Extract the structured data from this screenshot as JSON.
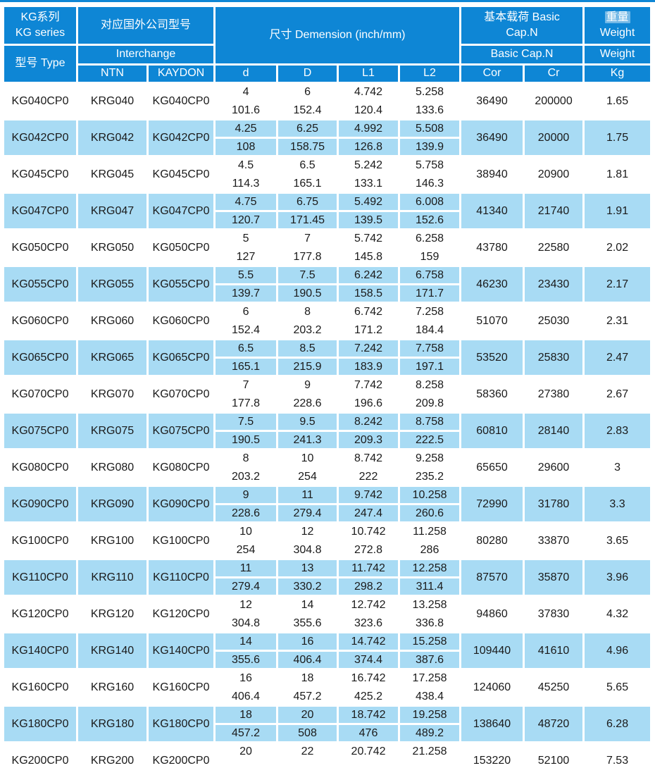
{
  "colors": {
    "header_blue": "#0e86d5",
    "row_alt_blue": "#a8dbf4",
    "row_white": "#ffffff",
    "text": "#1a1a1a",
    "header_text": "#ffffff"
  },
  "header": {
    "series_line1": "KG系列",
    "series_line2": "KG series",
    "type": "型号 Type",
    "interchange_group": "对应国外公司型号",
    "interchange_sub": "Interchange",
    "ntn": "NTN",
    "kaydon": "KAYDON",
    "dimension": "尺寸 Demension (inch/mm)",
    "basic_group_line1": "基本载荷 Basic",
    "basic_group_line2": "Cap.N",
    "basic_sub": "Basic Cap.N",
    "cor": "Cor",
    "cr": "Cr",
    "weight_group_line1": "重量",
    "weight_group_line2": "Weight",
    "weight_sub": "Weight",
    "kg": "Kg"
  },
  "rows": [
    {
      "type": "KG040CP0",
      "ntn": "KRG040",
      "kaydon": "KG040CP0",
      "d": [
        "4",
        "101.6"
      ],
      "D": [
        "6",
        "152.4"
      ],
      "L1": [
        "4.742",
        "120.4"
      ],
      "L2": [
        "5.258",
        "133.6"
      ],
      "cor": "36490",
      "cr": "200000",
      "kg": "1.65"
    },
    {
      "type": "KG042CP0",
      "ntn": "KRG042",
      "kaydon": "KG042CP0",
      "d": [
        "4.25",
        "108"
      ],
      "D": [
        "6.25",
        "158.75"
      ],
      "L1": [
        "4.992",
        "126.8"
      ],
      "L2": [
        "5.508",
        "139.9"
      ],
      "cor": "36490",
      "cr": "20000",
      "kg": "1.75"
    },
    {
      "type": "KG045CP0",
      "ntn": "KRG045",
      "kaydon": "KG045CP0",
      "d": [
        "4.5",
        "114.3"
      ],
      "D": [
        "6.5",
        "165.1"
      ],
      "L1": [
        "5.242",
        "133.1"
      ],
      "L2": [
        "5.758",
        "146.3"
      ],
      "cor": "38940",
      "cr": "20900",
      "kg": "1.81"
    },
    {
      "type": "KG047CP0",
      "ntn": "KRG047",
      "kaydon": "KG047CP0",
      "d": [
        "4.75",
        "120.7"
      ],
      "D": [
        "6.75",
        "171.45"
      ],
      "L1": [
        "5.492",
        "139.5"
      ],
      "L2": [
        "6.008",
        "152.6"
      ],
      "cor": "41340",
      "cr": "21740",
      "kg": "1.91"
    },
    {
      "type": "KG050CP0",
      "ntn": "KRG050",
      "kaydon": "KG050CP0",
      "d": [
        "5",
        "127"
      ],
      "D": [
        "7",
        "177.8"
      ],
      "L1": [
        "5.742",
        "145.8"
      ],
      "L2": [
        "6.258",
        "159"
      ],
      "cor": "43780",
      "cr": "22580",
      "kg": "2.02"
    },
    {
      "type": "KG055CP0",
      "ntn": "KRG055",
      "kaydon": "KG055CP0",
      "d": [
        "5.5",
        "139.7"
      ],
      "D": [
        "7.5",
        "190.5"
      ],
      "L1": [
        "6.242",
        "158.5"
      ],
      "L2": [
        "6.758",
        "171.7"
      ],
      "cor": "46230",
      "cr": "23430",
      "kg": "2.17"
    },
    {
      "type": "KG060CP0",
      "ntn": "KRG060",
      "kaydon": "KG060CP0",
      "d": [
        "6",
        "152.4"
      ],
      "D": [
        "8",
        "203.2"
      ],
      "L1": [
        "6.742",
        "171.2"
      ],
      "L2": [
        "7.258",
        "184.4"
      ],
      "cor": "51070",
      "cr": "25030",
      "kg": "2.31"
    },
    {
      "type": "KG065CP0",
      "ntn": "KRG065",
      "kaydon": "KG065CP0",
      "d": [
        "6.5",
        "165.1"
      ],
      "D": [
        "8.5",
        "215.9"
      ],
      "L1": [
        "7.242",
        "183.9"
      ],
      "L2": [
        "7.758",
        "197.1"
      ],
      "cor": "53520",
      "cr": "25830",
      "kg": "2.47"
    },
    {
      "type": "KG070CP0",
      "ntn": "KRG070",
      "kaydon": "KG070CP0",
      "d": [
        "7",
        "177.8"
      ],
      "D": [
        "9",
        "228.6"
      ],
      "L1": [
        "7.742",
        "196.6"
      ],
      "L2": [
        "8.258",
        "209.8"
      ],
      "cor": "58360",
      "cr": "27380",
      "kg": "2.67"
    },
    {
      "type": "KG075CP0",
      "ntn": "KRG075",
      "kaydon": "KG075CP0",
      "d": [
        "7.5",
        "190.5"
      ],
      "D": [
        "9.5",
        "241.3"
      ],
      "L1": [
        "8.242",
        "209.3"
      ],
      "L2": [
        "8.758",
        "222.5"
      ],
      "cor": "60810",
      "cr": "28140",
      "kg": "2.83"
    },
    {
      "type": "KG080CP0",
      "ntn": "KRG080",
      "kaydon": "KG080CP0",
      "d": [
        "8",
        "203.2"
      ],
      "D": [
        "10",
        "254"
      ],
      "L1": [
        "8.742",
        "222"
      ],
      "L2": [
        "9.258",
        "235.2"
      ],
      "cor": "65650",
      "cr": "29600",
      "kg": "3"
    },
    {
      "type": "KG090CP0",
      "ntn": "KRG090",
      "kaydon": "KG090CP0",
      "d": [
        "9",
        "228.6"
      ],
      "D": [
        "11",
        "279.4"
      ],
      "L1": [
        "9.742",
        "247.4"
      ],
      "L2": [
        "10.258",
        "260.6"
      ],
      "cor": "72990",
      "cr": "31780",
      "kg": "3.3"
    },
    {
      "type": "KG100CP0",
      "ntn": "KRG100",
      "kaydon": "KG100CP0",
      "d": [
        "10",
        "254"
      ],
      "D": [
        "12",
        "304.8"
      ],
      "L1": [
        "10.742",
        "272.8"
      ],
      "L2": [
        "11.258",
        "286"
      ],
      "cor": "80280",
      "cr": "33870",
      "kg": "3.65"
    },
    {
      "type": "KG110CP0",
      "ntn": "KRG110",
      "kaydon": "KG110CP0",
      "d": [
        "11",
        "279.4"
      ],
      "D": [
        "13",
        "330.2"
      ],
      "L1": [
        "11.742",
        "298.2"
      ],
      "L2": [
        "12.258",
        "311.4"
      ],
      "cor": "87570",
      "cr": "35870",
      "kg": "3.96"
    },
    {
      "type": "KG120CP0",
      "ntn": "KRG120",
      "kaydon": "KG120CP0",
      "d": [
        "12",
        "304.8"
      ],
      "D": [
        "14",
        "355.6"
      ],
      "L1": [
        "12.742",
        "323.6"
      ],
      "L2": [
        "13.258",
        "336.8"
      ],
      "cor": "94860",
      "cr": "37830",
      "kg": "4.32"
    },
    {
      "type": "KG140CP0",
      "ntn": "KRG140",
      "kaydon": "KG140CP0",
      "d": [
        "14",
        "355.6"
      ],
      "D": [
        "16",
        "406.4"
      ],
      "L1": [
        "14.742",
        "374.4"
      ],
      "L2": [
        "15.258",
        "387.6"
      ],
      "cor": "109440",
      "cr": "41610",
      "kg": "4.96"
    },
    {
      "type": "KG160CP0",
      "ntn": "KRG160",
      "kaydon": "KG160CP0",
      "d": [
        "16",
        "406.4"
      ],
      "D": [
        "18",
        "457.2"
      ],
      "L1": [
        "16.742",
        "425.2"
      ],
      "L2": [
        "17.258",
        "438.4"
      ],
      "cor": "124060",
      "cr": "45250",
      "kg": "5.65"
    },
    {
      "type": "KG180CP0",
      "ntn": "KRG180",
      "kaydon": "KG180CP0",
      "d": [
        "18",
        "457.2"
      ],
      "D": [
        "20",
        "508"
      ],
      "L1": [
        "18.742",
        "476"
      ],
      "L2": [
        "19.258",
        "489.2"
      ],
      "cor": "138640",
      "cr": "48720",
      "kg": "6.28"
    },
    {
      "type": "KG200CP0",
      "ntn": "KRG200",
      "kaydon": "KG200CP0",
      "d": [
        "20"
      ],
      "D": [
        "22"
      ],
      "L1": [
        "20.742"
      ],
      "L2": [
        "21.258"
      ],
      "cor": "153220",
      "cr": "52100",
      "kg": "7.53"
    }
  ]
}
